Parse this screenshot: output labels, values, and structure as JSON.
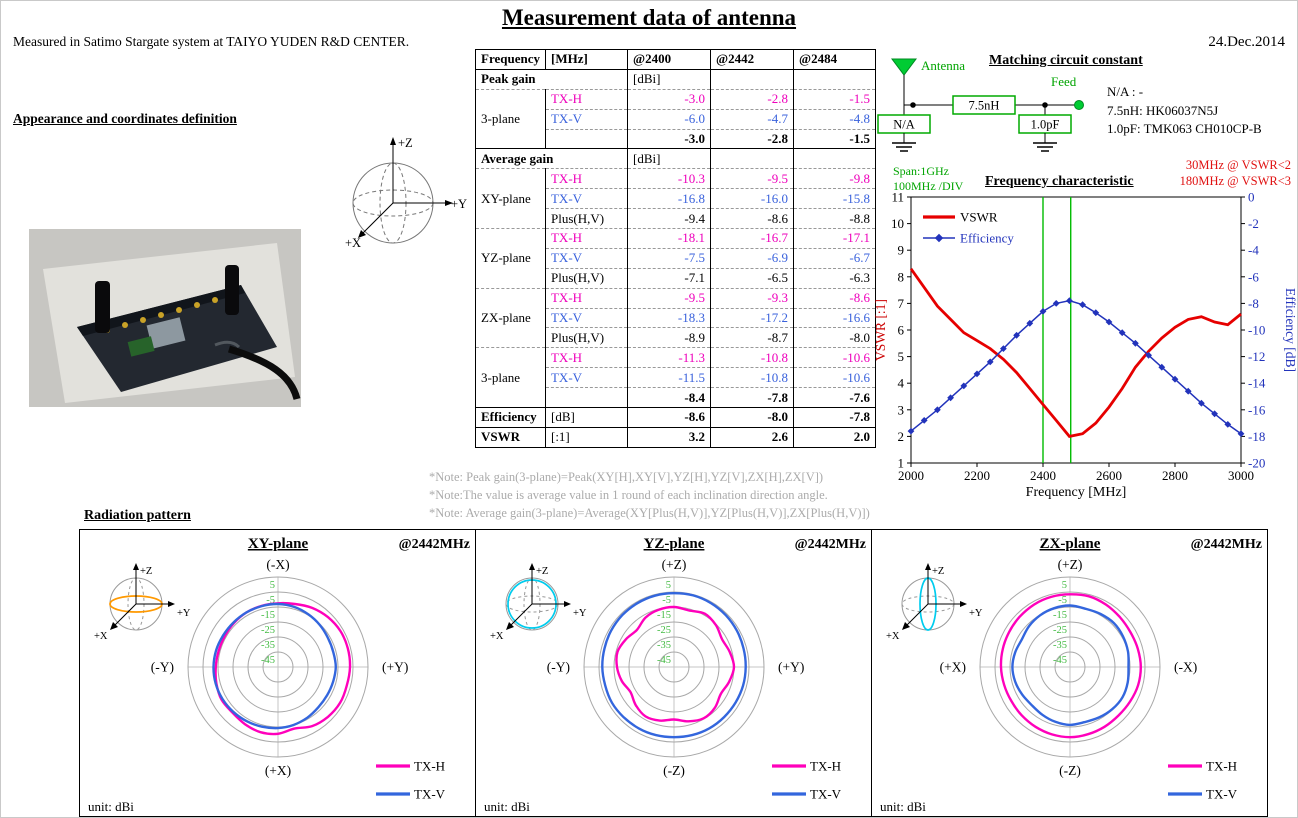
{
  "page": {
    "title": "Measurement data of antenna",
    "measured_in": "Measured in Satimo Stargate system at TAIYO YUDEN R&D CENTER.",
    "date": "24.Dec.2014",
    "appearance_heading": "Appearance and coordinates definition",
    "radiation_heading": "Radiation pattern"
  },
  "coordinate_axes": {
    "up": "+Z",
    "right": "+Y",
    "down_left": "+X"
  },
  "gain_table": {
    "header": {
      "col1": "Frequency",
      "col2": "[MHz]",
      "freqs": [
        "@2400",
        "@2442",
        "@2484"
      ]
    },
    "sections": [
      {
        "label": "Peak gain",
        "unit": "[dBi]",
        "groups": [
          {
            "plane": "3-plane",
            "rows": [
              {
                "pol": "TX-H",
                "color": "txh",
                "values": [
                  "-3.0",
                  "-2.8",
                  "-1.5"
                ]
              },
              {
                "pol": "TX-V",
                "color": "txv",
                "values": [
                  "-6.0",
                  "-4.7",
                  "-4.8"
                ]
              },
              {
                "pol": "",
                "bold": true,
                "values": [
                  "-3.0",
                  "-2.8",
                  "-1.5"
                ]
              }
            ]
          }
        ]
      },
      {
        "label": "Average gain",
        "unit": "[dBi]",
        "groups": [
          {
            "plane": "XY-plane",
            "rows": [
              {
                "pol": "TX-H",
                "color": "txh",
                "values": [
                  "-10.3",
                  "-9.5",
                  "-9.8"
                ]
              },
              {
                "pol": "TX-V",
                "color": "txv",
                "values": [
                  "-16.8",
                  "-16.0",
                  "-15.8"
                ]
              },
              {
                "pol": "Plus(H,V)",
                "values": [
                  "-9.4",
                  "-8.6",
                  "-8.8"
                ]
              }
            ]
          },
          {
            "plane": "YZ-plane",
            "rows": [
              {
                "pol": "TX-H",
                "color": "txh",
                "values": [
                  "-18.1",
                  "-16.7",
                  "-17.1"
                ]
              },
              {
                "pol": "TX-V",
                "color": "txv",
                "values": [
                  "-7.5",
                  "-6.9",
                  "-6.7"
                ]
              },
              {
                "pol": "Plus(H,V)",
                "values": [
                  "-7.1",
                  "-6.5",
                  "-6.3"
                ]
              }
            ]
          },
          {
            "plane": "ZX-plane",
            "rows": [
              {
                "pol": "TX-H",
                "color": "txh",
                "values": [
                  "-9.5",
                  "-9.3",
                  "-8.6"
                ]
              },
              {
                "pol": "TX-V",
                "color": "txv",
                "values": [
                  "-18.3",
                  "-17.2",
                  "-16.6"
                ]
              },
              {
                "pol": "Plus(H,V)",
                "values": [
                  "-8.9",
                  "-8.7",
                  "-8.0"
                ]
              }
            ]
          },
          {
            "plane": "3-plane",
            "rows": [
              {
                "pol": "TX-H",
                "color": "txh",
                "values": [
                  "-11.3",
                  "-10.8",
                  "-10.6"
                ]
              },
              {
                "pol": "TX-V",
                "color": "txv",
                "values": [
                  "-11.5",
                  "-10.8",
                  "-10.6"
                ]
              },
              {
                "pol": "",
                "bold": true,
                "values": [
                  "-8.4",
                  "-7.8",
                  "-7.6"
                ]
              }
            ]
          }
        ]
      }
    ],
    "summary_rows": [
      {
        "label": "Efficiency",
        "unit": "[dB]",
        "values": [
          "-8.6",
          "-8.0",
          "-7.8"
        ]
      },
      {
        "label": "VSWR",
        "unit": "[:1]",
        "values": [
          "3.2",
          "2.6",
          "2.0"
        ]
      }
    ]
  },
  "notes": [
    "*Note: Peak gain(3-plane)=Peak(XY[H],XY[V],YZ[H],YZ[V],ZX[H],ZX[V])",
    "*Note:The value is average value in 1 round of each inclination direction angle.",
    "*Note: Average gain(3-plane)=Average(XY[Plus(H,V)],YZ[Plus(H,V)],ZX[Plus(H,V)])"
  ],
  "matching_circuit": {
    "title": "Matching circuit constant",
    "antenna_label": "Antenna",
    "feed_label": "Feed",
    "series_value": "7.5nH",
    "shunt1_value": "N/A",
    "shunt2_value": "1.0pF",
    "parts": [
      "N/A : -",
      "7.5nH:  HK06037N5J",
      "1.0pF:  TMK063 CH010CP-B"
    ]
  },
  "chart_data": [
    {
      "type": "line",
      "title": "Frequency characteristic",
      "xlabel": "Frequency [MHz]",
      "xlim": [
        2000,
        3000
      ],
      "x_ticks": [
        2000,
        2200,
        2400,
        2600,
        2800,
        3000
      ],
      "left_axis": {
        "label": "VSWR [:1]",
        "color": "#CC0000",
        "lim": [
          1,
          11
        ],
        "ticks": [
          11,
          10,
          9,
          8,
          7,
          6,
          5,
          4,
          3,
          2,
          1
        ]
      },
      "right_axis": {
        "label": "Efficiency [dB]",
        "color": "#2233BB",
        "lim": [
          -20,
          0
        ],
        "ticks": [
          0,
          -2,
          -4,
          -6,
          -8,
          -10,
          -12,
          -14,
          -16,
          -18,
          -20
        ]
      },
      "markers_x": [
        2400,
        2484
      ],
      "annotations": {
        "span": "Span:1GHz",
        "div": "100MHz /DIV",
        "bw2": "30MHz @ VSWR<2",
        "bw3": "180MHz @ VSWR<3"
      },
      "series": [
        {
          "name": "VSWR",
          "axis": "left",
          "color": "#E60000",
          "width": 2.8,
          "x": [
            2000,
            2040,
            2080,
            2120,
            2160,
            2200,
            2240,
            2280,
            2320,
            2360,
            2400,
            2440,
            2480,
            2520,
            2560,
            2600,
            2640,
            2680,
            2720,
            2760,
            2800,
            2840,
            2880,
            2920,
            2960,
            3000
          ],
          "y": [
            8.3,
            7.6,
            6.9,
            6.4,
            5.9,
            5.6,
            5.3,
            4.9,
            4.4,
            3.8,
            3.2,
            2.6,
            2.0,
            2.1,
            2.5,
            3.1,
            3.8,
            4.6,
            5.2,
            5.7,
            6.1,
            6.4,
            6.5,
            6.3,
            6.2,
            6.6
          ]
        },
        {
          "name": "Efficiency",
          "axis": "right",
          "color": "#2233BB",
          "width": 1.5,
          "marker": "diamond",
          "x": [
            2000,
            2040,
            2080,
            2120,
            2160,
            2200,
            2240,
            2280,
            2320,
            2360,
            2400,
            2440,
            2480,
            2520,
            2560,
            2600,
            2640,
            2680,
            2720,
            2760,
            2800,
            2840,
            2880,
            2920,
            2960,
            3000
          ],
          "y": [
            -17.6,
            -16.8,
            -16.0,
            -15.1,
            -14.2,
            -13.3,
            -12.4,
            -11.4,
            -10.4,
            -9.5,
            -8.6,
            -8.0,
            -7.8,
            -8.1,
            -8.7,
            -9.4,
            -10.2,
            -11.0,
            -11.9,
            -12.8,
            -13.7,
            -14.6,
            -15.5,
            -16.3,
            -17.1,
            -17.8
          ]
        }
      ]
    },
    {
      "type": "polar",
      "title": "XY-plane",
      "freq": "@2442MHz",
      "unit": "unit: dBi",
      "axis_labels": {
        "top": "(-X)",
        "right": "(+Y)",
        "left": "(-Y)",
        "bottom": "(+X)"
      },
      "ring_labels": [
        5,
        -5,
        -15,
        -25,
        -35,
        -45
      ],
      "rmax": 5,
      "rmin": -55,
      "sphere": {
        "type": "h-ellipse",
        "color": "#FF9900"
      },
      "series": [
        {
          "name": "TX-H",
          "color": "#FF00BB",
          "values": [
            -12.5,
            -11.5,
            -9.5,
            -8,
            -7,
            -6.8,
            -7,
            -7.5,
            -7.2,
            -8,
            -9.5,
            -12.5,
            -10.5,
            -10,
            -11,
            -12,
            -11.5,
            -12.5,
            -13.5,
            -14,
            -14,
            -13.5,
            -13,
            -12.8
          ]
        },
        {
          "name": "TX-V",
          "color": "#3366DD",
          "values": [
            -13,
            -13.5,
            -14.5,
            -15.5,
            -16.5,
            -16.8,
            -16.5,
            -17,
            -17.2,
            -17,
            -16,
            -15,
            -14.3,
            -13.8,
            -13.3,
            -12.8,
            -12.3,
            -12,
            -12,
            -12.3,
            -12.8,
            -13,
            -13,
            -13
          ]
        }
      ]
    },
    {
      "type": "polar",
      "title": "YZ-plane",
      "freq": "@2442MHz",
      "unit": "unit: dBi",
      "axis_labels": {
        "top": "(+Z)",
        "right": "(+Y)",
        "left": "(-Y)",
        "bottom": "(-Z)"
      },
      "ring_labels": [
        5,
        -5,
        -15,
        -25,
        -35,
        -45
      ],
      "rmax": 5,
      "rmin": -55,
      "sphere": {
        "type": "circle",
        "color": "#00CCEE"
      },
      "series": [
        {
          "name": "TX-H",
          "color": "#FF00BB",
          "values": [
            -15,
            -16,
            -14,
            -15.5,
            -18,
            -16.5,
            -15,
            -17,
            -19,
            -16.5,
            -15.5,
            -17.5,
            -20,
            -18,
            -17,
            -19,
            -21.5,
            -19,
            -17,
            -16,
            -18,
            -20,
            -17,
            -15.5
          ]
        },
        {
          "name": "TX-V",
          "color": "#3366DD",
          "values": [
            -5.8,
            -5.6,
            -5.8,
            -6.2,
            -6.6,
            -7,
            -7.2,
            -7.3,
            -7.6,
            -7.8,
            -7.8,
            -8,
            -8.2,
            -8,
            -7.8,
            -7.6,
            -7.3,
            -7.5,
            -7.2,
            -7,
            -6.6,
            -6.2,
            -6,
            -5.8
          ]
        }
      ]
    },
    {
      "type": "polar",
      "title": "ZX-plane",
      "freq": "@2442MHz",
      "unit": "unit: dBi",
      "axis_labels": {
        "top": "(+Z)",
        "right": "(-X)",
        "left": "(+X)",
        "bottom": "(-Z)"
      },
      "ring_labels": [
        5,
        -5,
        -15,
        -25,
        -35,
        -45
      ],
      "rmax": 5,
      "rmin": -55,
      "sphere": {
        "type": "v-ellipse",
        "color": "#00CCEE"
      },
      "series": [
        {
          "name": "TX-H",
          "color": "#FF00BB",
          "values": [
            -6.5,
            -6.2,
            -7,
            -8,
            -8.5,
            -8.2,
            -7.8,
            -8,
            -8.8,
            -9.3,
            -9,
            -8.6,
            -8.2,
            -8.5,
            -9,
            -9.5,
            -9.8,
            -9.5,
            -9,
            -8.6,
            -8.2,
            -7.6,
            -7,
            -6.6
          ]
        },
        {
          "name": "TX-V",
          "color": "#3366DD",
          "values": [
            -14,
            -14.8,
            -14.2,
            -13.6,
            -14.2,
            -15,
            -16,
            -15.2,
            -14.6,
            -15.2,
            -16.2,
            -17,
            -16.4,
            -17.2,
            -18.2,
            -19,
            -18.2,
            -17.2,
            -16.6,
            -17.2,
            -18,
            -16.4,
            -15.2,
            -14.4
          ]
        }
      ]
    }
  ]
}
